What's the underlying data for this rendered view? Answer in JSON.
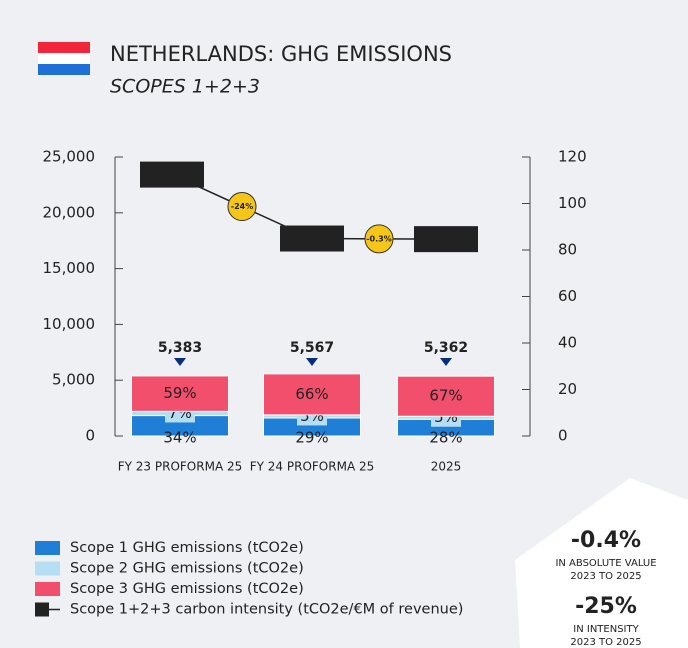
{
  "chart_data": {
    "type": "bar",
    "title": "NETHERLANDS: GHG EMISSIONS",
    "subtitle": "SCOPES 1+2+3",
    "categories": [
      "FY 23 PROFORMA 25",
      "FY 24 PROFORMA 25",
      "2025"
    ],
    "totals": [
      5383,
      5567,
      5362
    ],
    "total_labels": [
      "5,383",
      "5,567",
      "5,362"
    ],
    "series": [
      {
        "name": "Scope 1 GHG emissions (tCO2e)",
        "color": "#1f7fd6",
        "values": [
          34,
          29,
          28
        ],
        "value_labels": [
          "34%",
          "29%",
          "28%"
        ]
      },
      {
        "name": "Scope 2 GHG emissions (tCO2e)",
        "color": "#b6def3",
        "values": [
          7,
          5,
          5
        ],
        "value_labels": [
          "7%",
          "5%",
          "5%"
        ]
      },
      {
        "name": "Scope 3 GHG emissions (tCO2e)",
        "color": "#f24f6d",
        "values": [
          59,
          66,
          67
        ],
        "value_labels": [
          "59%",
          "66%",
          "67%"
        ]
      },
      {
        "name": "Scope 1+2+3 carbon intensity (tCO2e/€M of revenue)",
        "color": "#222222",
        "type": "line",
        "axis": "y2",
        "values": [
          112.43,
          84.94,
          84.67
        ]
      }
    ],
    "changes": [
      "-24%",
      "-0.3%"
    ],
    "ylim": [
      0,
      25000
    ],
    "yticks": [
      0,
      {
        "value": 5000,
        "label": "5,000"
      },
      {
        "value": 10000,
        "label": "10,000"
      },
      {
        "value": 15000,
        "label": "15,000"
      },
      {
        "value": 20000,
        "label": "20,000"
      },
      {
        "value": 25000,
        "label": "25,000"
      }
    ],
    "y2lim": [
      0,
      120
    ],
    "y2ticks": [
      0,
      20,
      40,
      60,
      80,
      100,
      120
    ],
    "kpis": [
      {
        "value": "-0.4%",
        "line1": "IN ABSOLUTE VALUE",
        "line2": "2023 TO 2025"
      },
      {
        "value": "-25%",
        "line1": "IN INTENSITY",
        "line2": "2023 TO 2025"
      }
    ]
  }
}
